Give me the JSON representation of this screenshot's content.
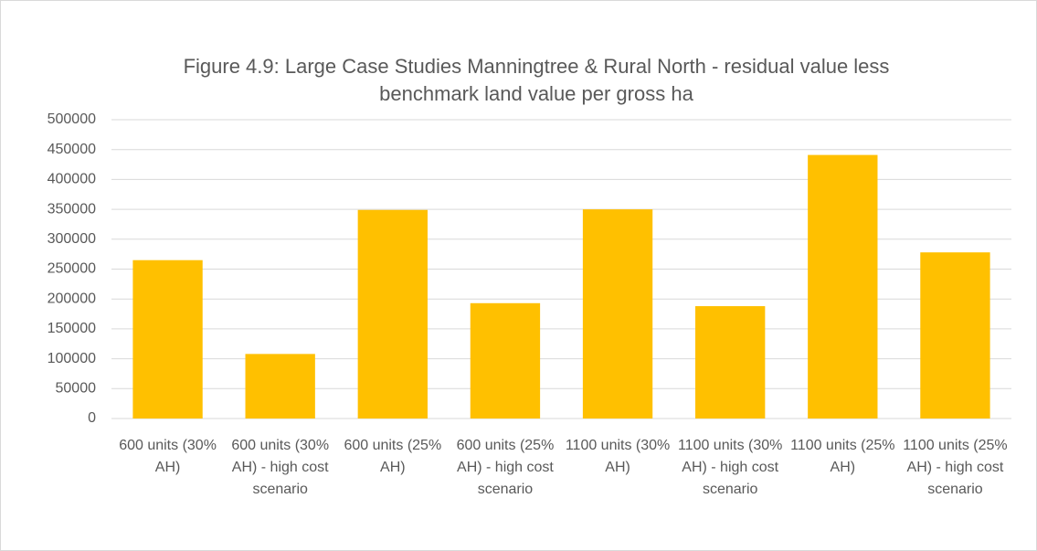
{
  "chart_data": {
    "type": "bar",
    "title": "Figure 4.9: Large Case Studies Manningtree & Rural North - residual value less benchmark land value per gross ha",
    "categories": [
      "600 units (30% AH)",
      "600 units (30% AH) - high cost scenario",
      "600 units (25% AH)",
      "600 units (25% AH) - high cost scenario",
      "1100 units (30% AH)",
      "1100 units (30% AH) - high cost scenario",
      "1100 units (25% AH)",
      "1100 units (25% AH) - high cost scenario"
    ],
    "values": [
      265000,
      108000,
      349000,
      193000,
      350000,
      188000,
      441000,
      278000
    ],
    "color": "#ffc000",
    "ylim": [
      0,
      500000
    ],
    "yticks": [
      0,
      50000,
      100000,
      150000,
      200000,
      250000,
      300000,
      350000,
      400000,
      450000,
      500000
    ],
    "grid": true
  }
}
